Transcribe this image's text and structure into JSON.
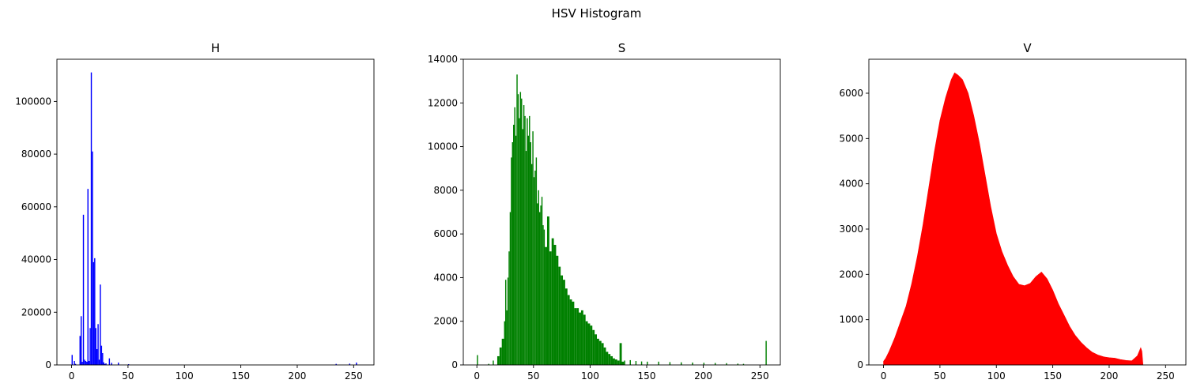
{
  "suptitle": "HSV Histogram",
  "chart_data": [
    {
      "type": "bar",
      "title": "H",
      "color": "#0000ff",
      "xlim": [
        -13,
        268
      ],
      "ylim": [
        0,
        116000
      ],
      "xticks": [
        0,
        50,
        100,
        150,
        200,
        250
      ],
      "yticks": [
        0,
        20000,
        40000,
        60000,
        80000,
        100000
      ],
      "x": [
        0,
        2,
        3,
        7,
        8,
        9,
        10,
        11,
        12,
        13,
        14,
        15,
        16,
        17,
        18,
        19,
        20,
        21,
        22,
        23,
        24,
        25,
        26,
        27,
        28,
        29,
        30,
        33,
        35,
        41,
        50,
        234,
        246,
        252
      ],
      "values": [
        3800,
        1500,
        400,
        11000,
        18500,
        1200,
        57000,
        2000,
        1500,
        1200,
        66800,
        1500,
        14000,
        111000,
        81000,
        39000,
        40500,
        14000,
        6000,
        15500,
        2000,
        30500,
        7300,
        4500,
        1000,
        400,
        600,
        2500,
        800,
        900,
        300,
        400,
        500,
        900
      ]
    },
    {
      "type": "bar",
      "title": "S",
      "color": "#008000",
      "xlim": [
        -12,
        268
      ],
      "ylim": [
        0,
        14000
      ],
      "xticks": [
        0,
        50,
        100,
        150,
        200,
        250
      ],
      "yticks": [
        0,
        2000,
        4000,
        6000,
        8000,
        10000,
        12000,
        14000
      ],
      "series_x": [
        0,
        10,
        14,
        18,
        20,
        22,
        24,
        25,
        26,
        27,
        28,
        29,
        30,
        31,
        32,
        33,
        34,
        35,
        36,
        37,
        38,
        39,
        40,
        41,
        42,
        43,
        44,
        45,
        46,
        47,
        48,
        49,
        50,
        51,
        52,
        53,
        54,
        55,
        56,
        57,
        58,
        59,
        60,
        62,
        64,
        66,
        68,
        70,
        72,
        74,
        76,
        78,
        80,
        82,
        84,
        86,
        88,
        90,
        92,
        94,
        96,
        98,
        100,
        102,
        104,
        106,
        108,
        110,
        112,
        114,
        116,
        118,
        120,
        122,
        124,
        126,
        128,
        130,
        135,
        140,
        145,
        150,
        160,
        170,
        180,
        190,
        200,
        210,
        220,
        230,
        235,
        255
      ],
      "values": [
        450,
        50,
        200,
        400,
        800,
        1200,
        2000,
        3900,
        2500,
        4000,
        5200,
        7000,
        9500,
        10200,
        11000,
        11800,
        10500,
        13300,
        12400,
        11300,
        12500,
        12200,
        10800,
        11900,
        11400,
        9800,
        11300,
        10500,
        11400,
        10200,
        9200,
        10700,
        8600,
        8900,
        9500,
        7400,
        8000,
        7000,
        7300,
        7700,
        6400,
        6200,
        5400,
        6800,
        5200,
        5800,
        5500,
        5000,
        4500,
        4100,
        3900,
        3500,
        3200,
        3000,
        2900,
        2600,
        2600,
        2400,
        2500,
        2300,
        2000,
        1900,
        1800,
        1600,
        1400,
        1200,
        1100,
        1000,
        800,
        600,
        500,
        400,
        300,
        250,
        200,
        1000,
        150,
        200,
        220,
        180,
        160,
        150,
        150,
        130,
        120,
        110,
        100,
        90,
        80,
        60,
        50,
        1100
      ]
    },
    {
      "type": "bar",
      "title": "V",
      "color": "#ff0000",
      "xlim": [
        -13,
        268
      ],
      "ylim": [
        0,
        6750
      ],
      "xticks": [
        0,
        50,
        100,
        150,
        200,
        250
      ],
      "yticks": [
        0,
        1000,
        2000,
        3000,
        4000,
        5000,
        6000
      ],
      "curve_x": [
        0,
        2,
        5,
        10,
        15,
        20,
        25,
        30,
        35,
        40,
        45,
        50,
        55,
        60,
        63,
        66,
        70,
        75,
        80,
        85,
        90,
        95,
        100,
        105,
        110,
        115,
        120,
        125,
        130,
        135,
        140,
        145,
        150,
        155,
        160,
        165,
        170,
        175,
        180,
        185,
        190,
        195,
        200,
        205,
        210,
        215,
        220,
        225,
        228,
        229,
        230
      ],
      "values": [
        80,
        150,
        300,
        600,
        950,
        1300,
        1800,
        2400,
        3100,
        3900,
        4700,
        5400,
        5900,
        6300,
        6450,
        6400,
        6300,
        6000,
        5500,
        4900,
        4200,
        3500,
        2900,
        2500,
        2200,
        1950,
        1780,
        1750,
        1800,
        1950,
        2050,
        1900,
        1650,
        1350,
        1100,
        850,
        650,
        500,
        380,
        280,
        220,
        180,
        160,
        150,
        120,
        100,
        90,
        200,
        380,
        300,
        0
      ]
    }
  ]
}
